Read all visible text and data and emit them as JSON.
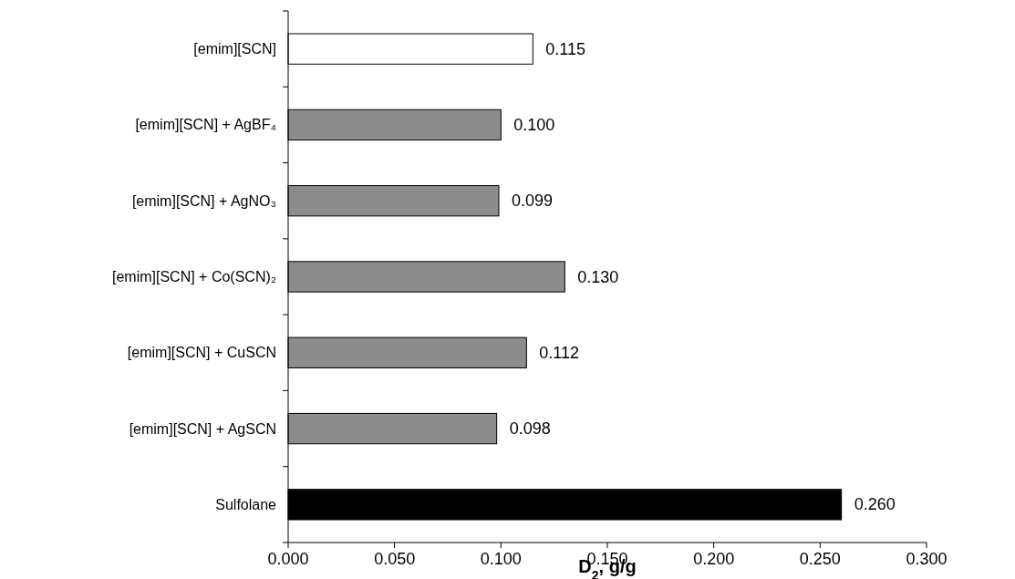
{
  "chart_data": {
    "type": "bar",
    "orientation": "horizontal",
    "xlabel": "D$_{2}$, g/g",
    "categories": [
      "[emim][SCN]",
      "[emim][SCN] + AgBF₄",
      "[emim][SCN] + AgNO₃",
      "[emim][SCN] + Co(SCN)₂",
      "[emim][SCN] + CuSCN",
      "[emim][SCN] + AgSCN",
      "Sulfolane"
    ],
    "values": [
      0.115,
      0.1,
      0.099,
      0.13,
      0.112,
      0.098,
      0.26
    ],
    "colors": [
      "#ffffff",
      "#8c8c8c",
      "#8c8c8c",
      "#8c8c8c",
      "#8c8c8c",
      "#8c8c8c",
      "#000000"
    ],
    "value_labels": [
      "0.115",
      "0.100",
      "0.099",
      "0.130",
      "0.112",
      "0.098",
      "0.260"
    ],
    "xlim": [
      0,
      0.3
    ],
    "xticks": [
      {
        "value": 0,
        "label": "0.000"
      },
      {
        "value": 0.05,
        "label": "0.050"
      },
      {
        "value": 0.1,
        "label": "0.100"
      },
      {
        "value": 0.15,
        "label": "0.150"
      },
      {
        "value": 0.2,
        "label": "0.200"
      },
      {
        "value": 0.25,
        "label": "0.250"
      },
      {
        "value": 0.3,
        "label": "0.300"
      }
    ],
    "grid": false
  }
}
